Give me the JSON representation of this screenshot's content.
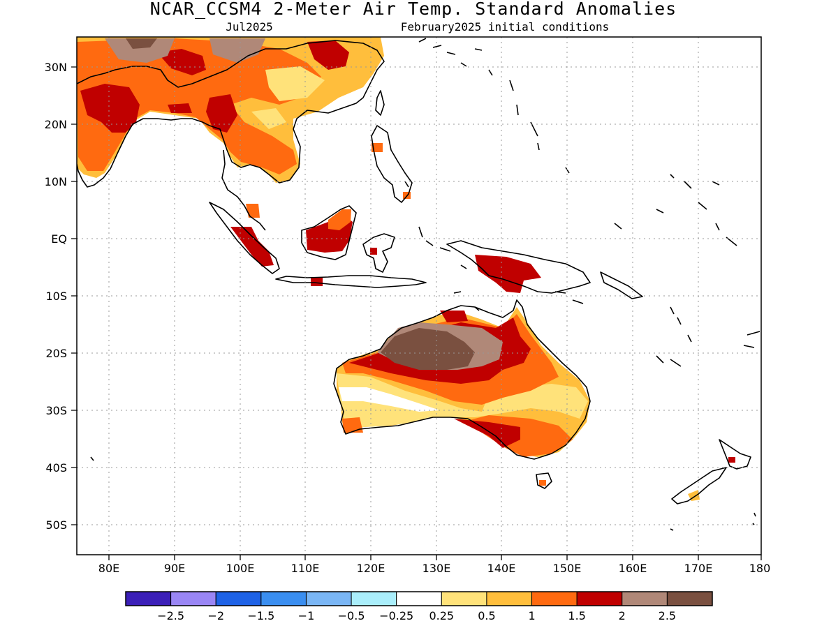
{
  "header": {
    "title": "NCAR_CCSM4 2-Meter Air Temp. Standard Anomalies",
    "valid_month": "Jul2025",
    "init": "February2025 initial conditions"
  },
  "map": {
    "lon_labels": [
      "80E",
      "90E",
      "100E",
      "110E",
      "120E",
      "130E",
      "140E",
      "150E",
      "160E",
      "170E",
      "180"
    ],
    "lat_labels": [
      "30N",
      "20N",
      "10N",
      "EQ",
      "10S",
      "20S",
      "30S",
      "40S",
      "50S"
    ]
  },
  "colorbar": {
    "colors": [
      "#3b1fb8",
      "#9a86f5",
      "#1e62e6",
      "#3a8ef0",
      "#7ab6f5",
      "#aaeefb",
      "#ffffff",
      "#ffe27a",
      "#ffbe3c",
      "#ff6a10",
      "#c00000",
      "#b08878",
      "#7a5040"
    ],
    "labels": [
      "-2.5",
      "-2",
      "-1.5",
      "-1",
      "-0.5",
      "-0.25",
      "0.25",
      "0.5",
      "1",
      "1.5",
      "2",
      "2.5"
    ]
  }
}
